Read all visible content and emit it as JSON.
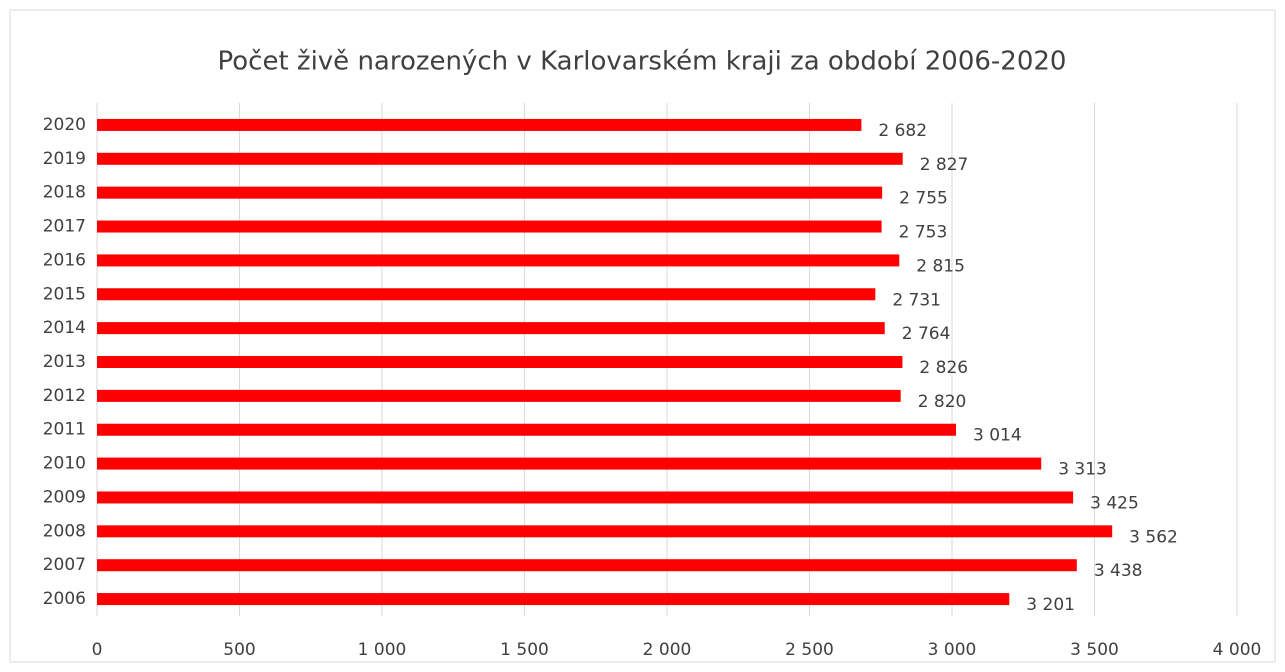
{
  "chart_data": {
    "type": "bar",
    "orientation": "horizontal",
    "title": "Počet živě narozených v Karlovarském kraji za období 2006-2020",
    "categories": [
      "2020",
      "2019",
      "2018",
      "2017",
      "2016",
      "2015",
      "2014",
      "2013",
      "2012",
      "2011",
      "2010",
      "2009",
      "2008",
      "2007",
      "2006"
    ],
    "values": [
      2682,
      2827,
      2755,
      2753,
      2815,
      2731,
      2764,
      2826,
      2820,
      3014,
      3313,
      3425,
      3562,
      3438,
      3201
    ],
    "value_labels": [
      "2 682",
      "2 827",
      "2 755",
      "2 753",
      "2 815",
      "2 731",
      "2 764",
      "2 826",
      "2 820",
      "3 014",
      "3 313",
      "3 425",
      "3 562",
      "3 438",
      "3 201"
    ],
    "color": "#ff0000",
    "xlim": [
      0,
      4000
    ],
    "xticks": [
      0,
      500,
      {
        "value": 1000,
        "label": "1 000"
      },
      {
        "value": 1500,
        "label": "1 500"
      },
      {
        "value": 2000,
        "label": "2 000"
      },
      {
        "value": 2500,
        "label": "2 500"
      },
      {
        "value": 3000,
        "label": "3 000"
      },
      {
        "value": 3500,
        "label": "3 500"
      },
      {
        "value": 4000,
        "label": "4 000"
      }
    ],
    "grid": true
  }
}
